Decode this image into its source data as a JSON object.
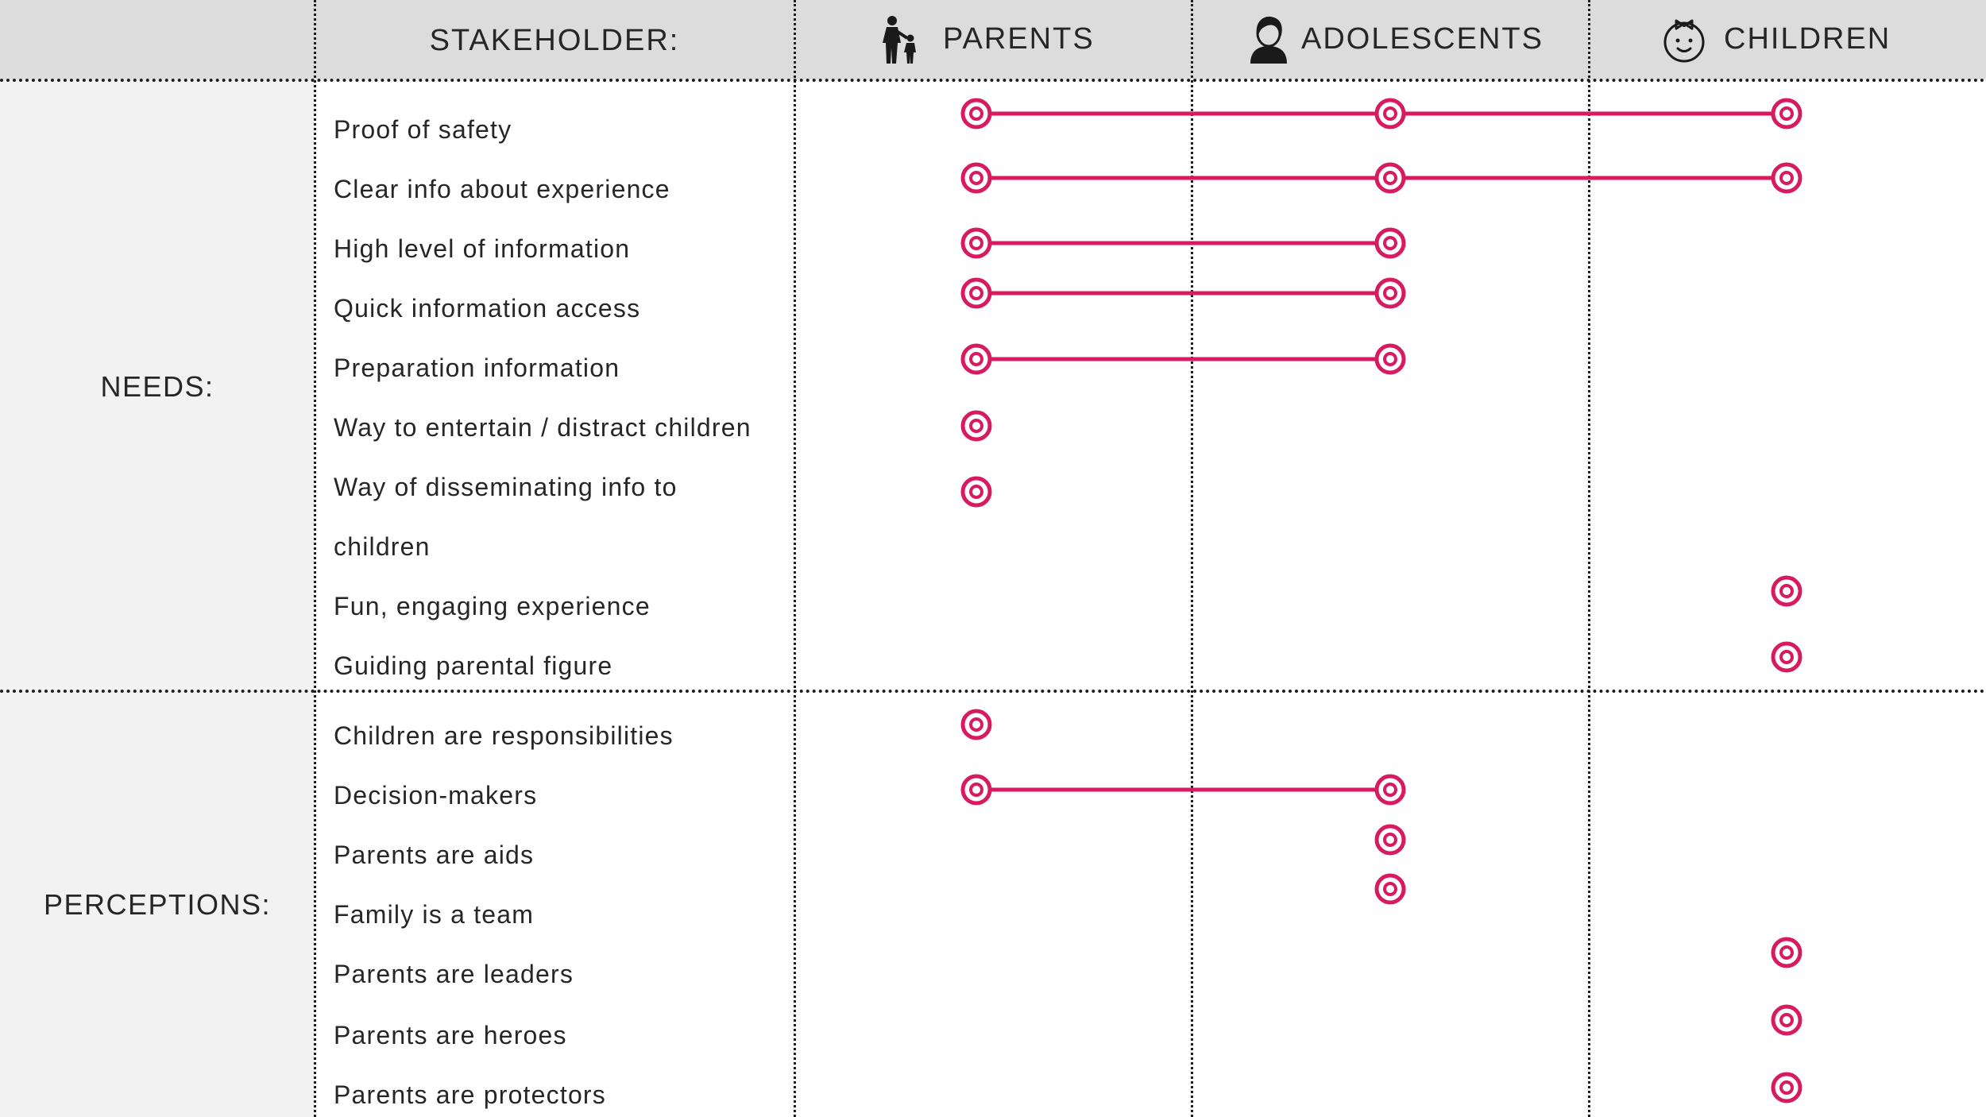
{
  "header": {
    "stakeholder_label": "STAKEHOLDER:",
    "columns": [
      {
        "label": "PARENTS",
        "icon": "parent-child-icon"
      },
      {
        "label": "ADOLESCENTS",
        "icon": "teen-icon"
      },
      {
        "label": "CHILDREN",
        "icon": "child-face-icon"
      }
    ]
  },
  "groups": {
    "needs": "NEEDS:",
    "perceptions": "PERCEPTIONS:"
  },
  "rows": [
    {
      "label": "Proof of safety",
      "stakeholders": [
        "parents",
        "adolescents",
        "children"
      ]
    },
    {
      "label": "Clear info about experience",
      "stakeholders": [
        "parents",
        "adolescents",
        "children"
      ]
    },
    {
      "label": "High level of information",
      "stakeholders": [
        "parents",
        "adolescents"
      ]
    },
    {
      "label": "Quick information access",
      "stakeholders": [
        "parents",
        "adolescents"
      ]
    },
    {
      "label": "Preparation information",
      "stakeholders": [
        "parents",
        "adolescents"
      ]
    },
    {
      "label": "Way to entertain / distract children",
      "stakeholders": [
        "parents"
      ]
    },
    {
      "label": "Way of disseminating info to",
      "stakeholders": [
        "parents"
      ]
    },
    {
      "label": "children",
      "stakeholders": []
    },
    {
      "label": "Fun, engaging experience",
      "stakeholders": [
        "children"
      ]
    },
    {
      "label": "Guiding parental figure",
      "stakeholders": [
        "children"
      ]
    },
    {
      "label": "Children are responsibilities",
      "stakeholders": [
        "parents"
      ]
    },
    {
      "label": "Decision-makers",
      "stakeholders": [
        "parents",
        "adolescents"
      ]
    },
    {
      "label": "Parents are aids",
      "stakeholders": [
        "adolescents"
      ]
    },
    {
      "label": "Family is a team",
      "stakeholders": [
        "adolescents"
      ]
    },
    {
      "label": "Parents are leaders",
      "stakeholders": [
        "children"
      ]
    },
    {
      "label": "Parents are heroes",
      "stakeholders": [
        "children"
      ]
    },
    {
      "label": "Parents are protectors",
      "stakeholders": [
        "children"
      ]
    }
  ],
  "colors": {
    "marker": "#d81b60",
    "header_bg": "#dcdcdc",
    "band_bg": "#f2f2f2"
  }
}
